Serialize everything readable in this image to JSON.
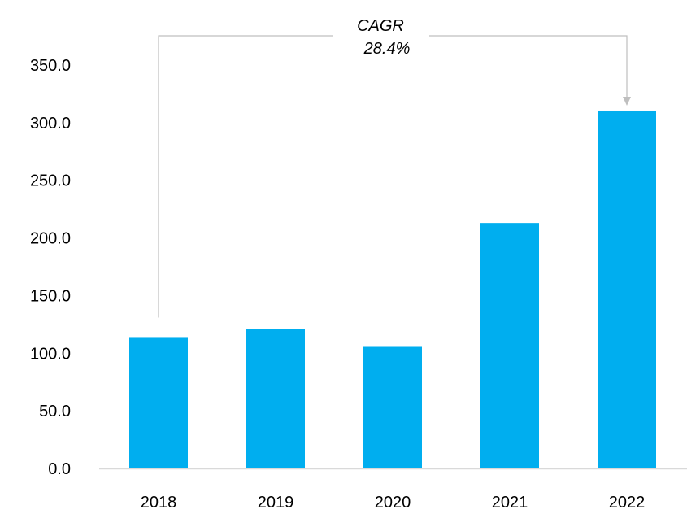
{
  "chart_data": {
    "type": "bar",
    "categories": [
      "2018",
      "2019",
      "2020",
      "2021",
      "2022"
    ],
    "values": [
      114.0,
      121.0,
      105.5,
      213.0,
      310.5
    ],
    "ylim": [
      0,
      350
    ],
    "y_ticks": [
      "0.0",
      "50.0",
      "100.0",
      "150.0",
      "200.0",
      "250.0",
      "300.0",
      "350.0"
    ],
    "title": "",
    "xlabel": "",
    "ylabel": "",
    "grid": false,
    "bar_color": "#00AEEF",
    "annotation": {
      "label": "CAGR",
      "value": "28.4%",
      "from_category": "2018",
      "to_category": "2022",
      "line_color": "#BFBFBF"
    }
  }
}
